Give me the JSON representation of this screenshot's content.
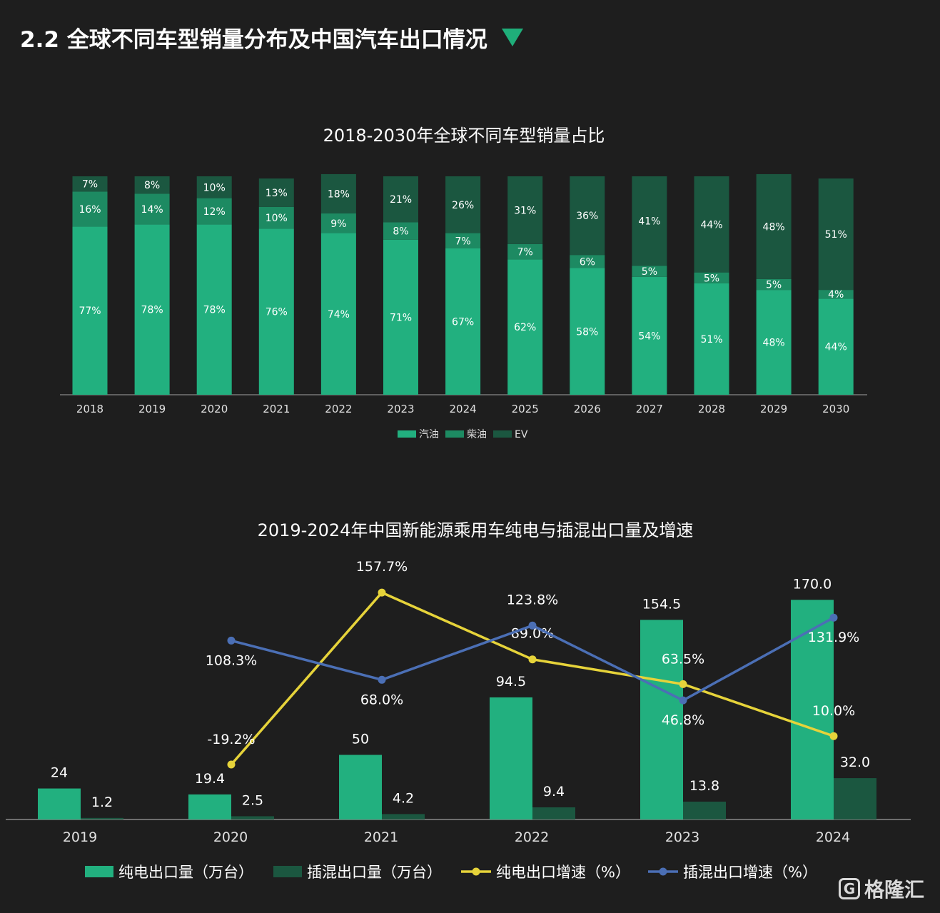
{
  "page": {
    "title": "2.2 全球不同车型销量分布及中国汽车出口情况",
    "title_marker_color": "#1fae7a",
    "watermark_logo": "G",
    "watermark_text": "格隆汇"
  },
  "colors": {
    "background": "#1e1e1e",
    "gasoline": "#22b07f",
    "diesel": "#1d8a62",
    "ev": "#1b5740",
    "bev_export": "#22b07f",
    "phev_export": "#1b5740",
    "bev_growth": "#e6d33a",
    "phev_growth": "#4b6fb5"
  },
  "chart_data": [
    {
      "type": "bar",
      "stacked": true,
      "title": "2018-2030年全球不同车型销量占比",
      "categories": [
        "2018",
        "2019",
        "2020",
        "2021",
        "2022",
        "2023",
        "2024",
        "2025",
        "2026",
        "2027",
        "2028",
        "2029",
        "2030"
      ],
      "series": [
        {
          "name": "汽油",
          "values": [
            77,
            78,
            78,
            76,
            74,
            71,
            67,
            62,
            58,
            54,
            51,
            48,
            44
          ],
          "labels": [
            "77%",
            "78%",
            "78%",
            "76%",
            "74%",
            "71%",
            "67%",
            "62%",
            "58%",
            "54%",
            "51%",
            "48%",
            "44%"
          ]
        },
        {
          "name": "柴油",
          "values": [
            16,
            14,
            12,
            10,
            9,
            8,
            7,
            7,
            6,
            5,
            5,
            5,
            4
          ],
          "labels": [
            "16%",
            "14%",
            "12%",
            "10%",
            "9%",
            "8%",
            "7%",
            "7%",
            "6%",
            "5%",
            "5%",
            "5%",
            "4%"
          ]
        },
        {
          "name": "EV",
          "values": [
            7,
            8,
            10,
            13,
            18,
            21,
            26,
            31,
            36,
            41,
            44,
            48,
            51
          ],
          "labels": [
            "7%",
            "8%",
            "10%",
            "13%",
            "18%",
            "21%",
            "26%",
            "31%",
            "36%",
            "41%",
            "44%",
            "48%",
            "51%"
          ]
        }
      ],
      "legend": "bottom",
      "grid": false
    },
    {
      "type": "bar",
      "combo": "bar+line",
      "title": "2019-2024年中国新能源乘用车纯电与插混出口量及增速",
      "categories": [
        "2019",
        "2020",
        "2021",
        "2022",
        "2023",
        "2024"
      ],
      "series": [
        {
          "name": "纯电出口量（万台）",
          "kind": "bar",
          "values": [
            24,
            19.4,
            50,
            94.5,
            154.5,
            170.0
          ],
          "labels": [
            "24",
            "19.4",
            "50",
            "94.5",
            "154.5",
            "170.0"
          ]
        },
        {
          "name": "插混出口量（万台）",
          "kind": "bar",
          "values": [
            1.2,
            2.5,
            4.2,
            9.4,
            13.8,
            32.0
          ],
          "labels": [
            "1.2",
            "2.5",
            "4.2",
            "9.4",
            "13.8",
            "32.0"
          ]
        },
        {
          "name": "纯电出口增速（%）",
          "kind": "line",
          "values": [
            null,
            -19.2,
            157.7,
            89.0,
            63.5,
            10.0
          ],
          "labels": [
            "",
            "-19.2%",
            "157.7%",
            "89.0%",
            "63.5%",
            "10.0%"
          ]
        },
        {
          "name": "插混出口增速（%）",
          "kind": "line",
          "values": [
            null,
            108.3,
            68.0,
            123.8,
            46.8,
            131.9
          ],
          "labels": [
            "",
            "108.3%",
            "68.0%",
            "123.8%",
            "46.8%",
            "131.9%"
          ]
        }
      ],
      "legend": "bottom",
      "grid": false
    }
  ]
}
